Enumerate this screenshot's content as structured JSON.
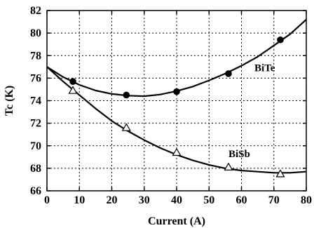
{
  "chart_data": {
    "type": "line",
    "xlabel": "Current (A)",
    "ylabel": "Tc (K)",
    "xlim": [
      0,
      80
    ],
    "ylim": [
      66,
      82
    ],
    "xticks": [
      0,
      10,
      20,
      30,
      40,
      50,
      60,
      70,
      80
    ],
    "yticks": [
      66,
      68,
      70,
      72,
      74,
      76,
      78,
      80,
      82
    ],
    "grid": true,
    "grid_style": "dotted",
    "series": [
      {
        "name": "BiTe",
        "marker": "filled-circle",
        "points": [
          [
            8,
            75.7
          ],
          [
            24.5,
            74.5
          ],
          [
            40,
            74.8
          ],
          [
            56,
            76.4
          ],
          [
            72,
            79.4
          ]
        ],
        "curve": [
          [
            0,
            77.0
          ],
          [
            5,
            76.1
          ],
          [
            10,
            75.4
          ],
          [
            15,
            74.9
          ],
          [
            20,
            74.6
          ],
          [
            25,
            74.45
          ],
          [
            30,
            74.4
          ],
          [
            35,
            74.55
          ],
          [
            40,
            74.85
          ],
          [
            45,
            75.25
          ],
          [
            50,
            75.8
          ],
          [
            55,
            76.4
          ],
          [
            60,
            77.1
          ],
          [
            65,
            77.9
          ],
          [
            70,
            78.9
          ],
          [
            75,
            79.9
          ],
          [
            80,
            81.2
          ]
        ]
      },
      {
        "name": "BiSb",
        "marker": "open-triangle",
        "points": [
          [
            8,
            74.9
          ],
          [
            24.5,
            71.6
          ],
          [
            40,
            69.4
          ],
          [
            56,
            68.1
          ],
          [
            72,
            67.5
          ]
        ],
        "curve": [
          [
            0,
            77.0
          ],
          [
            5,
            75.7
          ],
          [
            10,
            74.5
          ],
          [
            15,
            73.3
          ],
          [
            20,
            72.2
          ],
          [
            25,
            71.3
          ],
          [
            30,
            70.5
          ],
          [
            35,
            69.8
          ],
          [
            40,
            69.2
          ],
          [
            45,
            68.7
          ],
          [
            50,
            68.3
          ],
          [
            55,
            68.0
          ],
          [
            60,
            67.8
          ],
          [
            65,
            67.7
          ],
          [
            70,
            67.6
          ],
          [
            75,
            67.6
          ],
          [
            80,
            67.7
          ]
        ]
      }
    ],
    "annotations": [
      {
        "text": "BiTe",
        "x": 64,
        "y": 76.6
      },
      {
        "text": "BiSb",
        "x": 56,
        "y": 69.0
      }
    ]
  }
}
